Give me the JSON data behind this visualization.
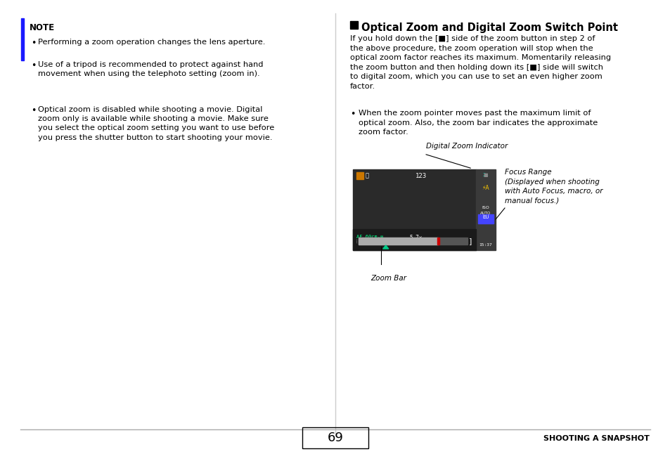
{
  "bg_color": "#ffffff",
  "page_num": "69",
  "footer_right": "SHOOTING A SNAPSHOT",
  "left_panel": {
    "note_label": "NOTE",
    "bullets": [
      "Performing a zoom operation changes the lens aperture.",
      "Use of a tripod is recommended to protect against hand\nmovement when using the telephoto setting (zoom in).",
      "Optical zoom is disabled while shooting a movie. Digital\nzoom only is available while shooting a movie. Make sure\nyou select the optical zoom setting you want to use before\nyou press the shutter button to start shooting your movie."
    ]
  },
  "right_panel": {
    "section_title": "Optical Zoom and Digital Zoom Switch Point",
    "para1": "If you hold down the [■] side of the zoom button in step 2 of\nthe above procedure, the zoom operation will stop when the\noptical zoom factor reaches its maximum. Momentarily releasing\nthe zoom button and then holding down its [■] side will switch\nto digital zoom, which you can use to set an even higher zoom\nfactor.",
    "bullet1": "When the zoom pointer moves past the maximum limit of\noptical zoom. Also, the zoom bar indicates the approximate\nzoom factor.",
    "label_digital": "Digital Zoom Indicator",
    "label_focus": "Focus Range\n(Displayed when shooting\nwith Auto Focus, macro, or\nmanual focus.)",
    "label_zoom_bar": "Zoom Bar"
  }
}
